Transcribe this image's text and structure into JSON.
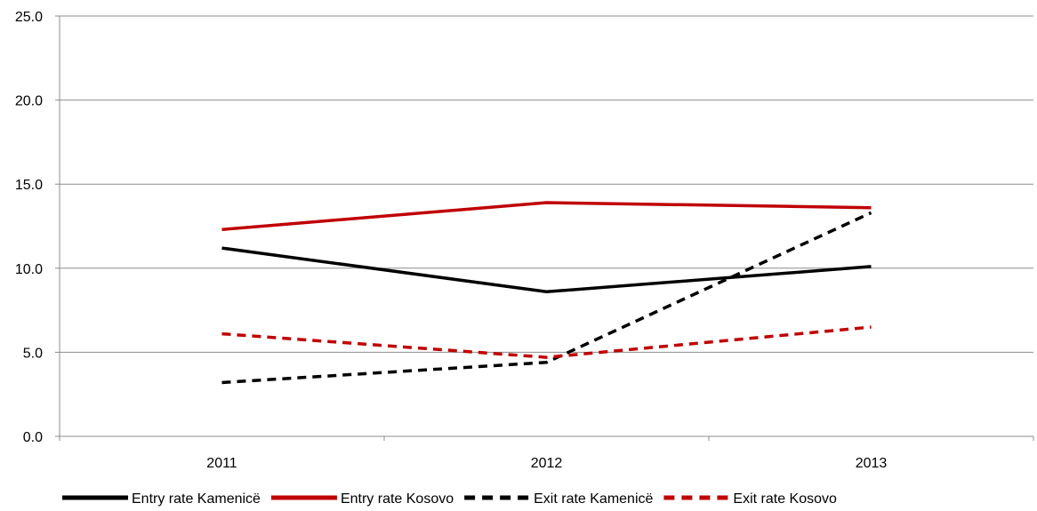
{
  "chart_data": {
    "type": "line",
    "categories": [
      "2011",
      "2012",
      "2013"
    ],
    "ylim": [
      0,
      25
    ],
    "yticks": [
      "0.0",
      "5.0",
      "10.0",
      "15.0",
      "20.0",
      "25.0"
    ],
    "grid": true,
    "legend_position": "bottom",
    "series": [
      {
        "name": "Entry rate Kamenicë",
        "values": [
          11.2,
          8.6,
          10.1
        ],
        "color": "#000000",
        "dashed": false
      },
      {
        "name": "Entry rate Kosovo",
        "values": [
          12.3,
          13.9,
          13.6
        ],
        "color": "#c00000",
        "dashed": false
      },
      {
        "name": "Exit rate Kamenicë",
        "values": [
          3.2,
          4.4,
          13.3
        ],
        "color": "#000000",
        "dashed": true
      },
      {
        "name": "Exit rate Kosovo",
        "values": [
          6.1,
          4.7,
          6.5
        ],
        "color": "#c00000",
        "dashed": true
      }
    ]
  }
}
